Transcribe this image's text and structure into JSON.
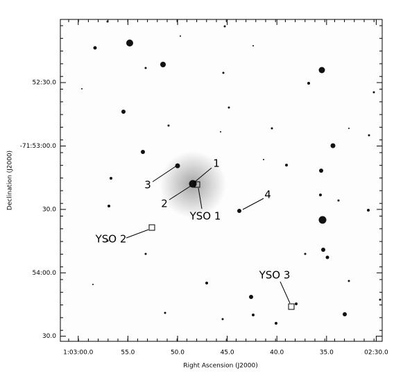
{
  "chart_data": {
    "type": "sky-image",
    "xlabel": "Right Ascension (J2000)",
    "ylabel": "Declination (J2000)",
    "xlim": [
      15.7575,
      15.6225
    ],
    "xticks": [
      {
        "value": 15.75,
        "label": "1:03:00.0"
      },
      {
        "value": 15.729167,
        "label": "55.0"
      },
      {
        "value": 15.708333,
        "label": "50.0"
      },
      {
        "value": 15.6875,
        "label": "45.0"
      },
      {
        "value": 15.666667,
        "label": "40.0"
      },
      {
        "value": 15.645833,
        "label": "35.0"
      },
      {
        "value": 15.625,
        "label": "02:30.0"
      }
    ],
    "ylim": [
      -71.909,
      -71.8667
    ],
    "yticks": [
      {
        "value": -71.875,
        "label": "52:30.0"
      },
      {
        "value": -71.883333,
        "label": "-71:53:00.0"
      },
      {
        "value": -71.891667,
        "label": "30.0"
      },
      {
        "value": -71.9,
        "label": "54:00.0"
      },
      {
        "value": -71.908333,
        "label": "30.0"
      }
    ],
    "annotations": [
      "1",
      "2",
      "3",
      "4",
      "YSO 1",
      "YSO 2",
      "YSO 3"
    ]
  }
}
